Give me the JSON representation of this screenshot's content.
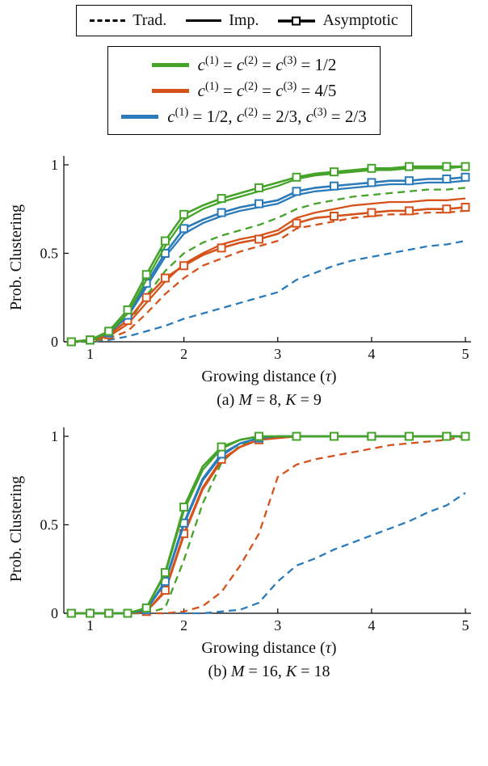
{
  "legend_styles": {
    "items": [
      {
        "label": "Trad.",
        "style": "dashed"
      },
      {
        "label": "Imp.",
        "style": "solid"
      },
      {
        "label": "Asymptotic",
        "style": "marker"
      }
    ]
  },
  "legend_colors": {
    "items": [
      {
        "label": "*c*^(1) = *c*^(2) = *c*^(3) = 1/2",
        "color_key": "green"
      },
      {
        "label": "*c*^(1) = *c*^(2) = *c*^(3) = 4/5",
        "color_key": "orange"
      },
      {
        "label": "*c*^(1) = 1/2, *c*^(2) = 2/3, *c*^(3) = 2/3",
        "color_key": "blue"
      }
    ]
  },
  "colors": {
    "green": "#44a328",
    "orange": "#d5521b",
    "blue": "#2b7bba",
    "axis": "#000000"
  },
  "chart_data": [
    {
      "type": "line",
      "title": "",
      "xlabel": "Growing distance (*τ*)",
      "ylabel": "Prob. Clustering",
      "caption": "(a) *M* = 8, *K* = 9",
      "xlim": [
        0.72,
        5.06
      ],
      "ylim": [
        0,
        1.05
      ],
      "xticks": [
        1,
        2,
        3,
        4,
        5
      ],
      "yticks": [
        0,
        0.5,
        1
      ],
      "ytick_labels": [
        "0",
        "0.5",
        "1"
      ],
      "grid": false,
      "x": [
        0.8,
        1,
        1.2,
        1.4,
        1.6,
        1.8,
        2,
        2.2,
        2.4,
        2.6,
        2.8,
        3,
        3.2,
        3.4,
        3.6,
        3.8,
        4,
        4.2,
        4.4,
        4.6,
        4.8,
        5
      ],
      "series": [
        {
          "name": "Trad. c=(1/2,2/3,2/3)",
          "color": "blue",
          "style": "trad",
          "values": [
            0,
            0,
            0.01,
            0.03,
            0.06,
            0.09,
            0.13,
            0.16,
            0.19,
            0.22,
            0.25,
            0.28,
            0.35,
            0.39,
            0.43,
            0.46,
            0.48,
            0.5,
            0.52,
            0.54,
            0.55,
            0.57
          ]
        },
        {
          "name": "Trad. c=4/5",
          "color": "orange",
          "style": "trad",
          "values": [
            0,
            0,
            0.02,
            0.06,
            0.16,
            0.27,
            0.36,
            0.43,
            0.47,
            0.51,
            0.54,
            0.57,
            0.64,
            0.66,
            0.68,
            0.7,
            0.71,
            0.72,
            0.72,
            0.73,
            0.73,
            0.74
          ]
        },
        {
          "name": "Trad. c=1/2",
          "color": "green",
          "style": "trad",
          "values": [
            0,
            0,
            0.03,
            0.1,
            0.26,
            0.4,
            0.5,
            0.56,
            0.6,
            0.63,
            0.66,
            0.7,
            0.75,
            0.78,
            0.8,
            0.82,
            0.83,
            0.84,
            0.85,
            0.86,
            0.86,
            0.87
          ]
        },
        {
          "name": "Imp. c=4/5",
          "color": "orange",
          "style": "imp",
          "values": [
            0,
            0.01,
            0.03,
            0.1,
            0.22,
            0.34,
            0.44,
            0.5,
            0.55,
            0.58,
            0.6,
            0.63,
            0.7,
            0.73,
            0.75,
            0.77,
            0.78,
            0.79,
            0.79,
            0.8,
            0.8,
            0.81
          ]
        },
        {
          "name": "Asymptotic c=4/5",
          "color": "orange",
          "style": "asym",
          "values": [
            0,
            0.01,
            0.04,
            0.12,
            0.25,
            0.36,
            0.43,
            0.49,
            0.53,
            0.56,
            0.58,
            0.61,
            0.67,
            0.7,
            0.71,
            0.72,
            0.73,
            0.74,
            0.74,
            0.75,
            0.75,
            0.76
          ]
        },
        {
          "name": "Imp. c=(1/2,2/3,2/3)",
          "color": "blue",
          "style": "imp",
          "values": [
            0,
            0.01,
            0.05,
            0.14,
            0.31,
            0.48,
            0.61,
            0.67,
            0.71,
            0.74,
            0.76,
            0.78,
            0.83,
            0.85,
            0.86,
            0.87,
            0.88,
            0.89,
            0.89,
            0.9,
            0.9,
            0.91
          ]
        },
        {
          "name": "Asymptotic c=(1/2,2/3,2/3)",
          "color": "blue",
          "style": "asym",
          "values": [
            0,
            0.01,
            0.05,
            0.15,
            0.33,
            0.5,
            0.64,
            0.69,
            0.73,
            0.76,
            0.78,
            0.8,
            0.85,
            0.87,
            0.88,
            0.89,
            0.9,
            0.91,
            0.91,
            0.92,
            0.92,
            0.93
          ]
        },
        {
          "name": "Imp. c=1/2",
          "color": "green",
          "style": "imp",
          "values": [
            0,
            0.01,
            0.05,
            0.16,
            0.35,
            0.54,
            0.69,
            0.75,
            0.79,
            0.82,
            0.85,
            0.88,
            0.92,
            0.94,
            0.95,
            0.96,
            0.97,
            0.97,
            0.98,
            0.98,
            0.98,
            0.99
          ]
        },
        {
          "name": "Asymptotic c=1/2",
          "color": "green",
          "style": "asym",
          "values": [
            0,
            0.01,
            0.06,
            0.18,
            0.38,
            0.57,
            0.72,
            0.77,
            0.81,
            0.84,
            0.87,
            0.9,
            0.93,
            0.95,
            0.96,
            0.97,
            0.98,
            0.98,
            0.99,
            0.99,
            0.99,
            0.99
          ]
        }
      ]
    },
    {
      "type": "line",
      "title": "",
      "xlabel": "Growing distance (*τ*)",
      "ylabel": "Prob. Clustering",
      "caption": "(b) *M* = 16, *K* = 18",
      "xlim": [
        0.72,
        5.06
      ],
      "ylim": [
        0,
        1.05
      ],
      "xticks": [
        1,
        2,
        3,
        4,
        5
      ],
      "yticks": [
        0,
        0.5,
        1
      ],
      "ytick_labels": [
        "0",
        "0.5",
        "1"
      ],
      "grid": false,
      "x": [
        0.8,
        1,
        1.2,
        1.4,
        1.6,
        1.8,
        2,
        2.2,
        2.4,
        2.6,
        2.8,
        3,
        3.2,
        3.4,
        3.6,
        3.8,
        4,
        4.2,
        4.4,
        4.6,
        4.8,
        5
      ],
      "series": [
        {
          "name": "Trad. c=(1/2,2/3,2/3)",
          "color": "blue",
          "style": "trad",
          "values": [
            0,
            0,
            0,
            0,
            0,
            0,
            0,
            0,
            0.01,
            0.02,
            0.06,
            0.18,
            0.27,
            0.31,
            0.36,
            0.4,
            0.44,
            0.48,
            0.52,
            0.57,
            0.61,
            0.68
          ]
        },
        {
          "name": "Trad. c=4/5",
          "color": "orange",
          "style": "trad",
          "values": [
            0,
            0,
            0,
            0,
            0,
            0,
            0.01,
            0.04,
            0.12,
            0.27,
            0.45,
            0.77,
            0.84,
            0.87,
            0.89,
            0.91,
            0.93,
            0.95,
            0.96,
            0.97,
            0.98,
            1
          ]
        },
        {
          "name": "Trad. c=1/2",
          "color": "green",
          "style": "trad",
          "values": [
            0,
            0,
            0,
            0,
            0,
            0.03,
            0.3,
            0.62,
            0.85,
            0.95,
            0.99,
            1,
            1,
            1,
            1,
            1,
            1,
            1,
            1,
            1,
            1,
            1
          ]
        },
        {
          "name": "Imp. c=4/5",
          "color": "orange",
          "style": "imp",
          "values": [
            0,
            0,
            0,
            0,
            0.01,
            0.12,
            0.44,
            0.7,
            0.86,
            0.94,
            0.98,
            0.99,
            1,
            1,
            1,
            1,
            1,
            1,
            1,
            1,
            1,
            1
          ]
        },
        {
          "name": "Asymptotic c=4/5",
          "color": "orange",
          "style": "asym",
          "values": [
            0,
            0,
            0,
            0,
            0.01,
            0.13,
            0.45,
            0.71,
            0.87,
            0.94,
            0.98,
            0.99,
            1,
            1,
            1,
            1,
            1,
            1,
            1,
            1,
            1,
            1
          ]
        },
        {
          "name": "Imp. c=(1/2,2/3,2/3)",
          "color": "blue",
          "style": "imp",
          "values": [
            0,
            0,
            0,
            0,
            0.02,
            0.17,
            0.5,
            0.75,
            0.89,
            0.96,
            0.99,
            1,
            1,
            1,
            1,
            1,
            1,
            1,
            1,
            1,
            1,
            1
          ]
        },
        {
          "name": "Asymptotic c=(1/2,2/3,2/3)",
          "color": "blue",
          "style": "asym",
          "values": [
            0,
            0,
            0,
            0,
            0.02,
            0.18,
            0.51,
            0.76,
            0.9,
            0.96,
            0.99,
            1,
            1,
            1,
            1,
            1,
            1,
            1,
            1,
            1,
            1,
            1
          ]
        },
        {
          "name": "Imp. c=1/2",
          "color": "green",
          "style": "imp",
          "values": [
            0,
            0,
            0,
            0,
            0.03,
            0.22,
            0.58,
            0.81,
            0.93,
            0.98,
            1,
            1,
            1,
            1,
            1,
            1,
            1,
            1,
            1,
            1,
            1,
            1
          ]
        },
        {
          "name": "Asymptotic c=1/2",
          "color": "green",
          "style": "asym",
          "values": [
            0,
            0,
            0,
            0,
            0.03,
            0.23,
            0.6,
            0.83,
            0.94,
            0.98,
            1,
            1,
            1,
            1,
            1,
            1,
            1,
            1,
            1,
            1,
            1,
            1
          ]
        }
      ]
    }
  ]
}
